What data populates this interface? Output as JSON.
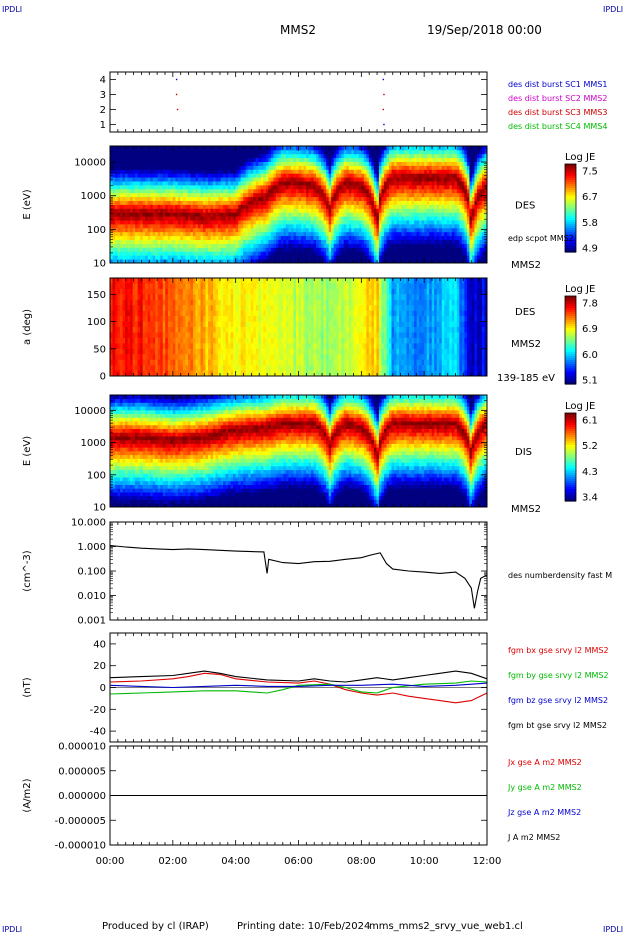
{
  "header": {
    "corner_left": "IPDLI",
    "corner_right": "IPDLI",
    "title": "MMS2",
    "date": "19/Sep/2018 00:00"
  },
  "footer": {
    "produced_by": "Produced by cl (IRAP)",
    "printing_date": "Printing date: 10/Feb/2024",
    "file": "mms_mms2_srvy_vue_web1.cl",
    "corner_left": "IPDLI",
    "corner_right": "IPDLI"
  },
  "colors": {
    "mms1": "#0000cc",
    "mms2": "#cc00cc",
    "mms3": "#cc0000",
    "mms4": "#00bb00",
    "bx": "#dd0000",
    "by": "#00bb00",
    "bz": "#0000cc",
    "bt": "#000000"
  },
  "chart_data": [
    {
      "type": "scatter",
      "panel": "burst",
      "y_ticks": [
        "1",
        "2",
        "3",
        "4"
      ],
      "ylim": [
        0.5,
        4.5
      ],
      "legend": [
        {
          "label": "des dist burst SC1 MMS1",
          "color": "#0000cc"
        },
        {
          "label": "des dist burst SC2 MMS2",
          "color": "#cc00cc"
        },
        {
          "label": "des dist burst SC3 MMS3",
          "color": "#cc0000"
        },
        {
          "label": "des dist burst SC4 MMS4",
          "color": "#00bb00"
        }
      ],
      "points": [
        {
          "x": 2.12,
          "y": 4,
          "color": "#0000cc"
        },
        {
          "x": 8.7,
          "y": 4,
          "color": "#0000cc"
        },
        {
          "x": 2.12,
          "y": 3,
          "color": "#cc0000"
        },
        {
          "x": 8.72,
          "y": 3,
          "color": "#cc0000"
        },
        {
          "x": 2.15,
          "y": 2,
          "color": "#cc0000"
        },
        {
          "x": 8.7,
          "y": 2,
          "color": "#cc0000"
        },
        {
          "x": 8.72,
          "y": 1,
          "color": "#0000cc"
        }
      ]
    },
    {
      "type": "heatmap",
      "panel": "des_energy",
      "ylabel": "E (eV)",
      "y_log": true,
      "ylim": [
        10,
        30000
      ],
      "y_ticks": [
        "10",
        "100",
        "1000",
        "10000"
      ],
      "label": "DES",
      "label2": "MMS2",
      "colorbar_title": "Log JE",
      "colorbar_ticks": [
        "7.5",
        "6.7",
        "5.8",
        "4.9"
      ],
      "zlim": [
        4.9,
        7.5
      ],
      "overlay_label": "edp scpot MMS2",
      "peak_energy_profile": {
        "x": [
          0,
          1,
          2,
          3,
          4,
          5,
          5.5,
          6,
          6.5,
          7,
          7.5,
          8,
          8.5,
          9,
          9.5,
          10,
          10.5,
          11,
          11.5,
          12
        ],
        "y": [
          300,
          300,
          300,
          250,
          280,
          1000,
          2500,
          2500,
          2000,
          400,
          2500,
          2000,
          100,
          3500,
          3500,
          3500,
          3500,
          3500,
          100,
          2000
        ]
      }
    },
    {
      "type": "heatmap",
      "panel": "des_pitch",
      "ylabel": "a (deg)",
      "ylim": [
        0,
        180
      ],
      "y_ticks": [
        "0",
        "50",
        "100",
        "150"
      ],
      "label": "DES",
      "label2": "MMS2",
      "energy_range": "139-185 eV",
      "colorbar_title": "Log JE",
      "colorbar_ticks": [
        "7.8",
        "6.9",
        "6.0",
        "5.1"
      ],
      "zlim": [
        5.1,
        7.8
      ],
      "level_profile": {
        "x": [
          0,
          1,
          2,
          3,
          4,
          5,
          6,
          7,
          8,
          8.5,
          9,
          10,
          11,
          11.5,
          12
        ],
        "y": [
          7.5,
          7.4,
          7.2,
          7.0,
          6.8,
          6.7,
          6.6,
          6.5,
          6.8,
          6.9,
          5.9,
          5.8,
          6.0,
          5.3,
          5.4
        ]
      }
    },
    {
      "type": "heatmap",
      "panel": "dis_energy",
      "ylabel": "E (eV)",
      "y_log": true,
      "ylim": [
        10,
        30000
      ],
      "y_ticks": [
        "10",
        "100",
        "1000",
        "10000"
      ],
      "label": "DIS",
      "label2": "MMS2",
      "colorbar_title": "Log JE",
      "colorbar_ticks": [
        "6.1",
        "5.2",
        "4.3",
        "3.4"
      ],
      "zlim": [
        3.4,
        6.1
      ],
      "peak_energy_profile": {
        "x": [
          0,
          1,
          2,
          3,
          4,
          5,
          5.5,
          6,
          6.5,
          7,
          7.5,
          8,
          8.5,
          9,
          9.5,
          10,
          10.5,
          11,
          11.5,
          12
        ],
        "y": [
          1500,
          1500,
          1200,
          1500,
          2500,
          3000,
          4000,
          4000,
          4000,
          800,
          4000,
          3000,
          300,
          4000,
          4000,
          4000,
          4000,
          4000,
          400,
          4000
        ]
      }
    },
    {
      "type": "line",
      "panel": "density",
      "ylabel": "(cm^-3)",
      "y_log": true,
      "ylim": [
        0.001,
        10
      ],
      "y_ticks": [
        "0.001",
        "0.010",
        "0.100",
        "1.000",
        "10.000"
      ],
      "series": [
        {
          "name": "des numberdensity fast M",
          "color": "#000000",
          "x": [
            0,
            0.5,
            1,
            1.5,
            2,
            2.5,
            3,
            3.5,
            4,
            4.5,
            4.9,
            5.0,
            5.05,
            5.5,
            6,
            6.5,
            7,
            7.5,
            8,
            8.3,
            8.6,
            8.8,
            9.0,
            9.5,
            10,
            10.5,
            11,
            11.3,
            11.5,
            11.6,
            11.7,
            11.8,
            12
          ],
          "y": [
            1.1,
            0.95,
            0.85,
            0.8,
            0.75,
            0.8,
            0.75,
            0.7,
            0.65,
            0.62,
            0.6,
            0.08,
            0.3,
            0.22,
            0.2,
            0.24,
            0.25,
            0.3,
            0.35,
            0.45,
            0.55,
            0.2,
            0.12,
            0.1,
            0.09,
            0.08,
            0.09,
            0.05,
            0.02,
            0.003,
            0.015,
            0.05,
            0.07
          ]
        }
      ]
    },
    {
      "type": "line",
      "panel": "magnetic_field",
      "ylabel": "(nT)",
      "ylim": [
        -50,
        50
      ],
      "y_ticks": [
        "-40",
        "-20",
        "0",
        "20",
        "40"
      ],
      "series": [
        {
          "name": "fgm bx gse srvy l2 MMS2",
          "color": "#dd0000",
          "x": [
            0,
            1,
            2,
            2.5,
            3,
            3.5,
            4,
            5,
            6,
            6.5,
            7,
            7.5,
            8,
            8.5,
            9,
            9.5,
            10,
            10.5,
            11,
            11.5,
            12
          ],
          "y": [
            5,
            6,
            8,
            10,
            13,
            12,
            8,
            5,
            4,
            6,
            3,
            -2,
            -5,
            -7,
            -5,
            -8,
            -10,
            -12,
            -14,
            -12,
            -5
          ]
        },
        {
          "name": "fgm by gse srvy l2 MMS2",
          "color": "#00bb00",
          "x": [
            0,
            1,
            2,
            3,
            4,
            5,
            5.5,
            6,
            7,
            7.5,
            8,
            8.5,
            9,
            10,
            11,
            11.5,
            12
          ],
          "y": [
            -6,
            -5,
            -4,
            -3,
            -3,
            -5,
            -2,
            2,
            3,
            0,
            -4,
            -5,
            0,
            3,
            4,
            6,
            5
          ]
        },
        {
          "name": "fgm bz gse srvy l2 MMS2",
          "color": "#0000cc",
          "x": [
            0,
            1,
            2,
            3,
            4,
            5,
            6,
            7,
            8,
            9,
            10,
            11,
            12
          ],
          "y": [
            2,
            1,
            0,
            1,
            2,
            1,
            1,
            2,
            2,
            3,
            1,
            2,
            4
          ]
        },
        {
          "name": "fgm bt gse srvy l2 MMS2",
          "color": "#000000",
          "x": [
            0,
            1,
            2,
            2.5,
            3,
            3.5,
            4,
            5,
            6,
            6.5,
            7,
            7.5,
            8,
            8.5,
            9,
            9.5,
            10,
            10.5,
            11,
            11.5,
            12
          ],
          "y": [
            9,
            10,
            11,
            13,
            15,
            13,
            10,
            7,
            6,
            8,
            6,
            5,
            7,
            9,
            7,
            9,
            11,
            13,
            15,
            13,
            8
          ]
        }
      ]
    },
    {
      "type": "line",
      "panel": "current",
      "ylabel": "(A/m2)",
      "ylim": [
        -1e-05,
        1e-05
      ],
      "y_ticks": [
        "-0.000010",
        "-0.000005",
        "0.000000",
        "0.000005",
        "0.000010"
      ],
      "xlim": [
        0,
        12
      ],
      "x_ticks": [
        "00:00",
        "02:00",
        "04:00",
        "06:00",
        "08:00",
        "10:00",
        "12:00"
      ],
      "series": [
        {
          "name": "Jx gse A m2 MMS2",
          "color": "#dd0000",
          "x": [
            0,
            12
          ],
          "y": [
            0,
            0
          ]
        },
        {
          "name": "Jy gse A m2 MMS2",
          "color": "#00bb00",
          "x": [
            0,
            12
          ],
          "y": [
            0,
            0
          ]
        },
        {
          "name": "Jz gse A m2 MMS2",
          "color": "#0000cc",
          "x": [
            0,
            12
          ],
          "y": [
            0,
            0
          ]
        },
        {
          "name": "J A m2 MMS2",
          "color": "#000000",
          "x": [
            0,
            12
          ],
          "y": [
            0,
            0
          ]
        }
      ]
    }
  ]
}
